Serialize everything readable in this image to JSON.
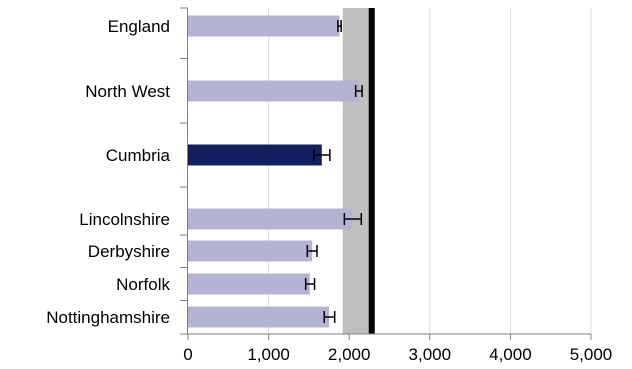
{
  "chart_data": {
    "type": "bar",
    "orientation": "horizontal",
    "title": "",
    "xlabel": "",
    "ylabel": "",
    "categories": [
      "England",
      "North West",
      "Cumbria",
      "Lincolnshire",
      "Derbyshire",
      "Norfolk",
      "Nottinghamshire"
    ],
    "category_gaps_after": [
      "England",
      "North West",
      "Cumbria"
    ],
    "values": [
      1880,
      2120,
      1660,
      2030,
      1540,
      1510,
      1750
    ],
    "error_low": [
      1860,
      2080,
      1560,
      1940,
      1480,
      1460,
      1690
    ],
    "error_high": [
      1900,
      2160,
      1760,
      2150,
      1600,
      1570,
      1820
    ],
    "highlight": "Cumbria",
    "reference_band": [
      1920,
      2300
    ],
    "reference_line": 2280,
    "xlim": [
      0,
      5000
    ],
    "xticks": [
      0,
      1000,
      2000,
      3000,
      4000,
      5000
    ],
    "xtick_labels": [
      "0",
      "1,000",
      "2,000",
      "3,000",
      "4,000",
      "5,000"
    ],
    "grid": "vertical",
    "colors": {
      "bar": "#b3b3d4",
      "highlight_bar": "#141f5e",
      "band": "#bfbfbf",
      "reference_line": "#000000",
      "grid": "#dcdcdc",
      "axis": "#808080"
    }
  }
}
